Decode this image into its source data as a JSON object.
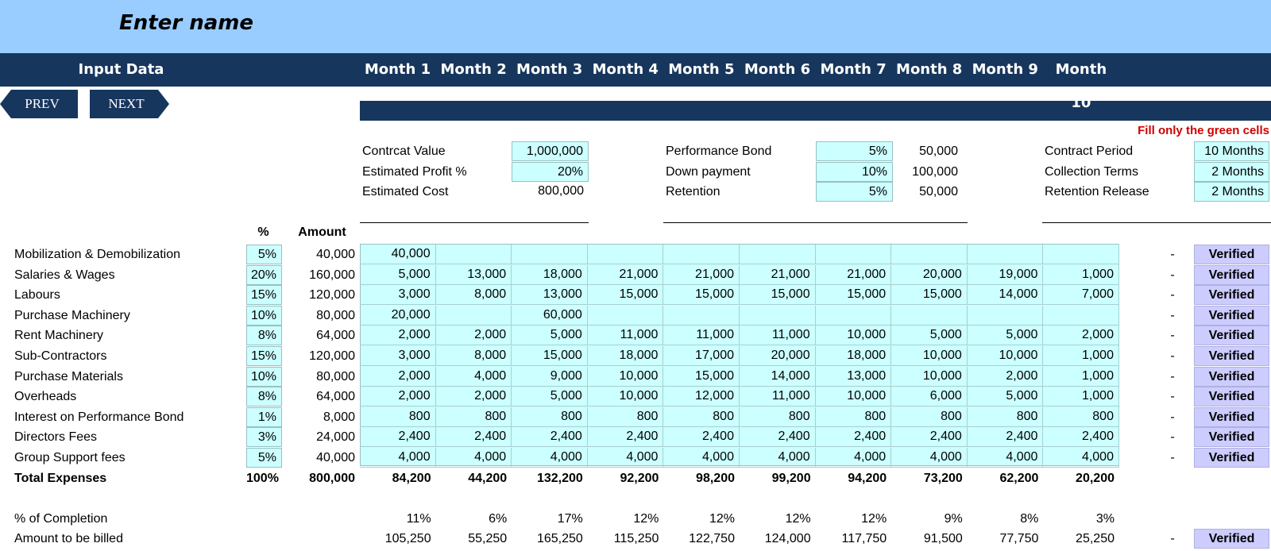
{
  "header": {
    "title": "Enter name",
    "section": "Input Data"
  },
  "months": [
    "Month 1",
    "Month 2",
    "Month 3",
    "Month 4",
    "Month 5",
    "Month 6",
    "Month 7",
    "Month 8",
    "Month 9",
    "Month 10"
  ],
  "nav": {
    "prev": "PREV",
    "next": "NEXT"
  },
  "note": "Fill only the green cells",
  "contract": {
    "col1": [
      {
        "label": "Contrcat Value",
        "value": "1,000,000",
        "input": true
      },
      {
        "label": "Estimated Profit %",
        "value": "20%",
        "input": true
      },
      {
        "label": "Estimated Cost",
        "value": "800,000",
        "input": false
      }
    ],
    "col2": [
      {
        "label": "Performance Bond",
        "value": "5%",
        "amount": "50,000"
      },
      {
        "label": "Down payment",
        "value": "10%",
        "amount": "100,000"
      },
      {
        "label": "Retention",
        "value": "5%",
        "amount": "50,000"
      }
    ],
    "col3": [
      {
        "label": "Contract Period",
        "value": "10 Months"
      },
      {
        "label": "Collection Terms",
        "value": "2 Months"
      },
      {
        "label": "Retention Release",
        "value": "2 Months"
      }
    ]
  },
  "table": {
    "pct_header": "%",
    "amount_header": "Amount",
    "rows": [
      {
        "name": "Mobilization & Demobilization",
        "pct": "5%",
        "amount": "40,000",
        "months": [
          "40,000",
          "",
          "",
          "",
          "",
          "",
          "",
          "",
          "",
          ""
        ],
        "dash": "-",
        "status": "Verified"
      },
      {
        "name": "Salaries & Wages",
        "pct": "20%",
        "amount": "160,000",
        "months": [
          "5,000",
          "13,000",
          "18,000",
          "21,000",
          "21,000",
          "21,000",
          "21,000",
          "20,000",
          "19,000",
          "1,000"
        ],
        "dash": "-",
        "status": "Verified"
      },
      {
        "name": "Labours",
        "pct": "15%",
        "amount": "120,000",
        "months": [
          "3,000",
          "8,000",
          "13,000",
          "15,000",
          "15,000",
          "15,000",
          "15,000",
          "15,000",
          "14,000",
          "7,000"
        ],
        "dash": "-",
        "status": "Verified"
      },
      {
        "name": "Purchase Machinery",
        "pct": "10%",
        "amount": "80,000",
        "months": [
          "20,000",
          "",
          "60,000",
          "",
          "",
          "",
          "",
          "",
          "",
          ""
        ],
        "dash": "-",
        "status": "Verified"
      },
      {
        "name": "Rent Machinery",
        "pct": "8%",
        "amount": "64,000",
        "months": [
          "2,000",
          "2,000",
          "5,000",
          "11,000",
          "11,000",
          "11,000",
          "10,000",
          "5,000",
          "5,000",
          "2,000"
        ],
        "dash": "-",
        "status": "Verified"
      },
      {
        "name": "Sub-Contractors",
        "pct": "15%",
        "amount": "120,000",
        "months": [
          "3,000",
          "8,000",
          "15,000",
          "18,000",
          "17,000",
          "20,000",
          "18,000",
          "10,000",
          "10,000",
          "1,000"
        ],
        "dash": "-",
        "status": "Verified"
      },
      {
        "name": "Purchase Materials",
        "pct": "10%",
        "amount": "80,000",
        "months": [
          "2,000",
          "4,000",
          "9,000",
          "10,000",
          "15,000",
          "14,000",
          "13,000",
          "10,000",
          "2,000",
          "1,000"
        ],
        "dash": "-",
        "status": "Verified"
      },
      {
        "name": "Overheads",
        "pct": "8%",
        "amount": "64,000",
        "months": [
          "2,000",
          "2,000",
          "5,000",
          "10,000",
          "12,000",
          "11,000",
          "10,000",
          "6,000",
          "5,000",
          "1,000"
        ],
        "dash": "-",
        "status": "Verified"
      },
      {
        "name": "Interest on Performance Bond",
        "pct": "1%",
        "amount": "8,000",
        "months": [
          "800",
          "800",
          "800",
          "800",
          "800",
          "800",
          "800",
          "800",
          "800",
          "800"
        ],
        "dash": "-",
        "status": "Verified"
      },
      {
        "name": "Directors Fees",
        "pct": "3%",
        "amount": "24,000",
        "months": [
          "2,400",
          "2,400",
          "2,400",
          "2,400",
          "2,400",
          "2,400",
          "2,400",
          "2,400",
          "2,400",
          "2,400"
        ],
        "dash": "-",
        "status": "Verified"
      },
      {
        "name": "Group Support fees",
        "pct": "5%",
        "amount": "40,000",
        "months": [
          "4,000",
          "4,000",
          "4,000",
          "4,000",
          "4,000",
          "4,000",
          "4,000",
          "4,000",
          "4,000",
          "4,000"
        ],
        "dash": "-",
        "status": "Verified"
      }
    ],
    "total": {
      "name": "Total Expenses",
      "pct": "100%",
      "amount": "800,000",
      "months": [
        "84,200",
        "44,200",
        "132,200",
        "92,200",
        "98,200",
        "99,200",
        "94,200",
        "73,200",
        "62,200",
        "20,200"
      ]
    },
    "completion": {
      "name": "% of Completion",
      "months": [
        "11%",
        "6%",
        "17%",
        "12%",
        "12%",
        "12%",
        "12%",
        "9%",
        "8%",
        "3%"
      ]
    },
    "billed": {
      "name": "Amount to be billed",
      "months": [
        "105,250",
        "55,250",
        "165,250",
        "115,250",
        "122,750",
        "124,000",
        "117,750",
        "91,500",
        "77,750",
        "25,250"
      ],
      "dash": "-",
      "status": "Verified"
    }
  }
}
